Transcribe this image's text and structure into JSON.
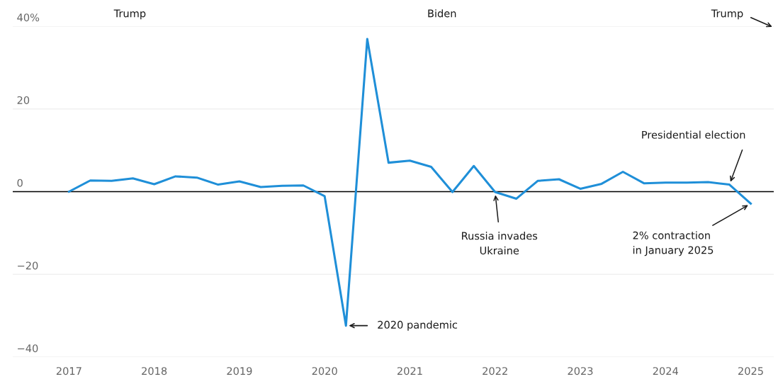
{
  "chart_data": {
    "type": "line",
    "x": [
      2017,
      2017.25,
      2017.5,
      2017.75,
      2018,
      2018.25,
      2018.5,
      2018.75,
      2019,
      2019.25,
      2019.5,
      2019.75,
      2020,
      2020.25,
      2020.5,
      2020.75,
      2021,
      2021.25,
      2021.5,
      2021.75,
      2022,
      2022.25,
      2022.5,
      2022.75,
      2023,
      2023.25,
      2023.5,
      2023.75,
      2024,
      2024.25,
      2024.5,
      2024.75,
      2025
    ],
    "series": [
      {
        "color": "#1f8fd8",
        "values": [
          0,
          2.7,
          2.6,
          3.2,
          1.8,
          3.7,
          3.4,
          1.7,
          2.5,
          1.1,
          1.4,
          1.5,
          -1.1,
          -32.4,
          36.9,
          7.0,
          7.5,
          6.0,
          -0.1,
          6.2,
          -0.1,
          -1.7,
          2.6,
          3.0,
          0.7,
          1.9,
          4.8,
          2.0,
          2.2,
          2.2,
          2.3,
          1.7,
          -2.9
        ]
      }
    ],
    "xlim": [
      2016.34,
      2025.27
    ],
    "xticks": [
      2017,
      2018,
      2019,
      2020,
      2021,
      2022,
      2023,
      2024,
      2025
    ],
    "ylim": [
      -40,
      40
    ],
    "yticks": [
      {
        "value": 40,
        "label": "40%"
      },
      20,
      0,
      {
        "value": -20,
        "label": "−20"
      },
      {
        "value": -40,
        "label": "−40"
      }
    ],
    "grid": "y",
    "ref_lines": [
      {
        "axis": "y",
        "value": 0,
        "color": "#000000"
      }
    ],
    "annotations": [
      "Trump",
      "Biden",
      "Trump",
      {
        "text": "2020 pandemic",
        "x": 2020.25,
        "y": -32.4
      },
      {
        "text": "Russia invades\nUkraine",
        "x": 2022,
        "y": -0.1
      },
      {
        "text": "Presidential election",
        "x": 2024.75,
        "y": 1.7
      },
      {
        "text": "2% contraction\nin January 2025",
        "x": 2025,
        "y": -2.9
      }
    ]
  }
}
